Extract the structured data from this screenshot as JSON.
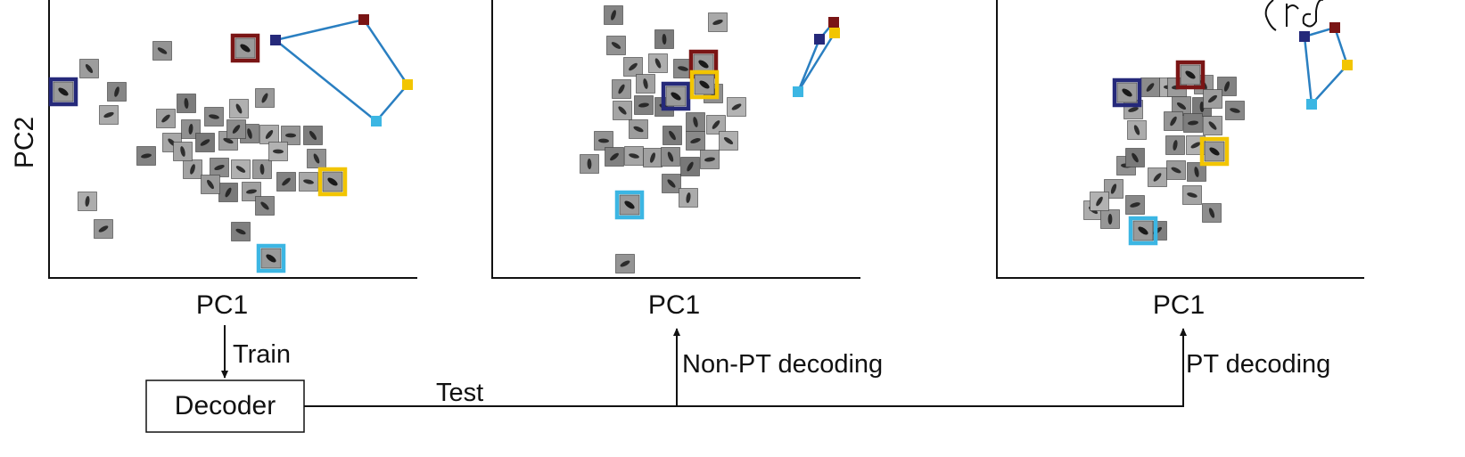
{
  "panels": [
    {
      "xlabel": "PC1",
      "ylabel": "PC2"
    },
    {
      "xlabel": "PC1",
      "ylabel": ""
    },
    {
      "xlabel": "PC1",
      "ylabel": ""
    }
  ],
  "flow": {
    "train_label": "Train",
    "decoder_label": "Decoder",
    "test_label": "Test",
    "nonpt_label": "Non-PT decoding",
    "pt_label": "PT decoding"
  },
  "colors": {
    "navy": "#25297a",
    "maroon": "#7a1515",
    "gold": "#f2c500",
    "cyan": "#3cb6e3",
    "prototype_line": "#2a7fc1",
    "patch_gray": "#8c8c8c"
  }
}
